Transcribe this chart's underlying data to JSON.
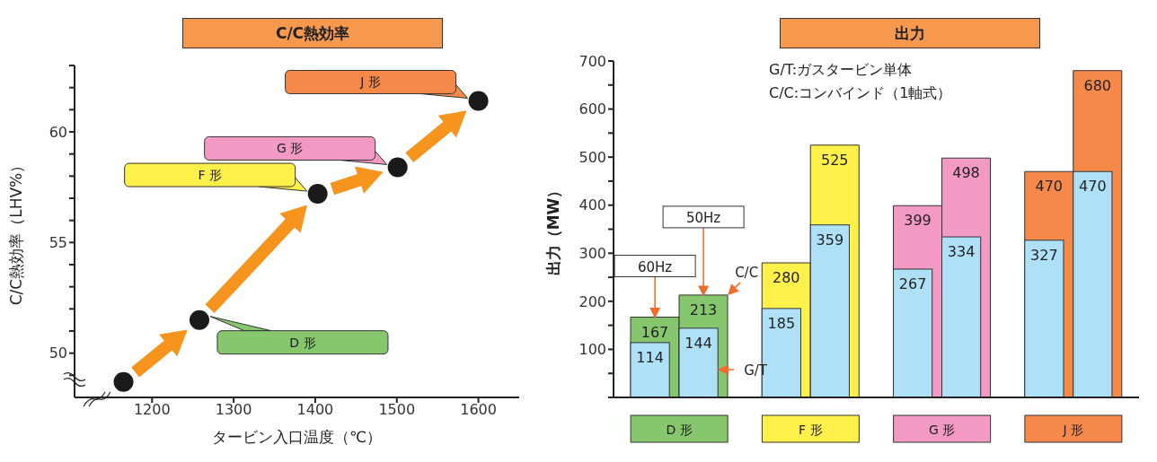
{
  "chart_data": [
    {
      "type": "scatter",
      "title": "C/C熱効率",
      "xlabel": "タービン入口温度（℃）",
      "ylabel": "C/C熱効率（LHV%）",
      "x": [
        1165,
        1258,
        1403,
        1501,
        1600
      ],
      "values": [
        48.7,
        51.5,
        57.2,
        58.4,
        61.4
      ],
      "color": "#1a1a1a",
      "marker": "circle",
      "xlim": [
        1105,
        1650
      ],
      "xticks": [
        1200,
        1300,
        1400,
        1500,
        1600
      ],
      "ylim": [
        48,
        63
      ],
      "yticks": [
        {
          "value": 49,
          "label": null
        },
        50,
        {
          "value": 51,
          "label": null
        },
        {
          "value": 52,
          "label": null
        },
        {
          "value": 53,
          "label": null
        },
        {
          "value": 54,
          "label": null
        },
        55,
        {
          "value": 56,
          "label": null
        },
        {
          "value": 57,
          "label": null
        },
        {
          "value": 58,
          "label": null
        },
        {
          "value": 59,
          "label": null
        },
        60,
        {
          "value": 61,
          "label": null
        },
        {
          "value": 62,
          "label": null
        },
        {
          "value": 63,
          "label": null
        }
      ],
      "annotations": [
        "D 形",
        "F 形",
        "G 形",
        "J 形"
      ]
    },
    {
      "type": "bar",
      "title": "出力",
      "ylabel": "出力（MW）",
      "categories": [
        "D 形",
        "F 形",
        "G 形",
        "J 形"
      ],
      "series": [
        {
          "colors": [
            "#86c66c",
            "#fff04a",
            "#f29ac3",
            "#f4894a"
          ],
          "values": [
            167,
            280,
            399,
            470
          ]
        },
        {
          "color": "#aee0f8",
          "values": [
            114,
            185,
            267,
            327
          ]
        },
        {
          "colors": [
            "#86c66c",
            "#fff04a",
            "#f29ac3",
            "#f4894a"
          ],
          "values": [
            213,
            525,
            498,
            680
          ]
        },
        {
          "color": "#aee0f8",
          "values": [
            144,
            359,
            334,
            470
          ]
        }
      ],
      "ylim": [
        0,
        700
      ],
      "yticks": [
        {
          "value": 0,
          "label": null
        },
        {
          "value": 50,
          "label": null
        },
        100,
        {
          "value": 150,
          "label": null
        },
        200,
        {
          "value": 250,
          "label": null
        },
        300,
        {
          "value": 350,
          "label": null
        },
        400,
        {
          "value": 450,
          "label": null
        },
        500,
        {
          "value": 550,
          "label": null
        },
        600,
        {
          "value": 650,
          "label": null
        },
        700
      ],
      "data_labels": true,
      "annotations": [
        "G/T:ガスタービン単体",
        "C/C:コンバインド（1軸式）",
        {
          "text": "60Hz",
          "y": 167
        },
        {
          "text": "50Hz",
          "y": 213
        },
        "C/C",
        "G/T"
      ]
    }
  ]
}
